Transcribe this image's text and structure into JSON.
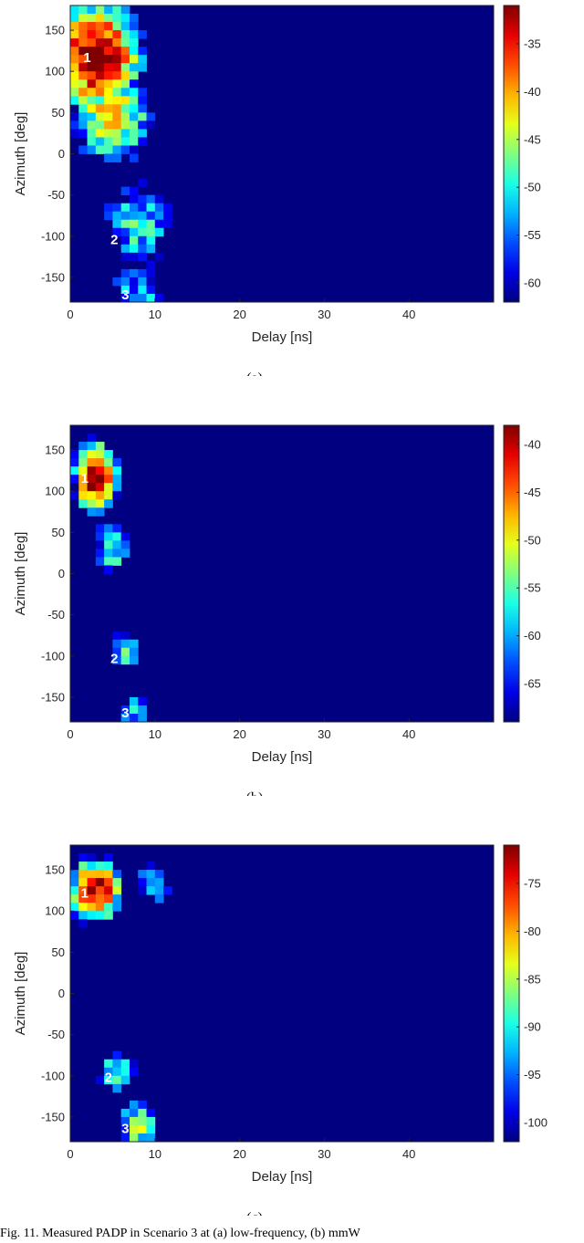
{
  "chart_data": [
    {
      "type": "heatmap",
      "caption": "(a)",
      "xlabel": "Delay [ns]",
      "ylabel": "Azimuth [deg]",
      "xlim": [
        0,
        50
      ],
      "ylim": [
        -180,
        180
      ],
      "xticks": [
        0,
        10,
        20,
        30,
        40
      ],
      "yticks": [
        150,
        100,
        50,
        0,
        -50,
        -100,
        -150
      ],
      "colorbar": {
        "min": -62,
        "max": -31,
        "ticks": [
          -35,
          -40,
          -45,
          -50,
          -55,
          -60
        ]
      },
      "colormap": "jet",
      "annotations": [
        {
          "label": "1",
          "delay": 2,
          "azimuth": 118
        },
        {
          "label": "2",
          "delay": 5.2,
          "azimuth": -103
        },
        {
          "label": "3",
          "delay": 6.5,
          "azimuth": -170
        }
      ],
      "clusters": [
        {
          "delay": 3,
          "azimuth": 120,
          "power": -31
        },
        {
          "delay": 5,
          "azimuth": 45,
          "power": -42
        },
        {
          "delay": 8,
          "azimuth": -85,
          "power": -50
        },
        {
          "delay": 8,
          "azimuth": -170,
          "power": -53
        }
      ]
    },
    {
      "type": "heatmap",
      "caption": "(b)",
      "xlabel": "Delay [ns]",
      "ylabel": "Azimuth [deg]",
      "xlim": [
        0,
        50
      ],
      "ylim": [
        -180,
        180
      ],
      "xticks": [
        0,
        10,
        20,
        30,
        40
      ],
      "yticks": [
        150,
        100,
        50,
        0,
        -50,
        -100,
        -150
      ],
      "colorbar": {
        "min": -69,
        "max": -38,
        "ticks": [
          -40,
          -45,
          -50,
          -55,
          -60,
          -65
        ]
      },
      "colormap": "jet",
      "annotations": [
        {
          "label": "1",
          "delay": 1.7,
          "azimuth": 117
        },
        {
          "label": "2",
          "delay": 5.2,
          "azimuth": -102
        },
        {
          "label": "3",
          "delay": 6.5,
          "azimuth": -168
        }
      ],
      "clusters": [
        {
          "delay": 3,
          "azimuth": 118,
          "power": -38
        },
        {
          "delay": 5,
          "azimuth": 35,
          "power": -54
        },
        {
          "delay": 6.5,
          "azimuth": -95,
          "power": -58
        },
        {
          "delay": 7.5,
          "azimuth": -170,
          "power": -60
        }
      ]
    },
    {
      "type": "heatmap",
      "caption": "(c)",
      "xlabel": "Delay [ns]",
      "ylabel": "Azimuth [deg]",
      "xlim": [
        0,
        50
      ],
      "ylim": [
        -180,
        180
      ],
      "xticks": [
        0,
        10,
        20,
        30,
        40
      ],
      "yticks": [
        150,
        100,
        50,
        0,
        -50,
        -100,
        -150
      ],
      "colorbar": {
        "min": -102,
        "max": -71,
        "ticks": [
          -75,
          -80,
          -85,
          -90,
          -95,
          -100
        ]
      },
      "colormap": "jet",
      "annotations": [
        {
          "label": "1",
          "delay": 1.7,
          "azimuth": 123
        },
        {
          "label": "2",
          "delay": 4.5,
          "azimuth": -101
        },
        {
          "label": "3",
          "delay": 6.5,
          "azimuth": -163
        }
      ],
      "clusters": [
        {
          "delay": 3,
          "azimuth": 125,
          "power": -71
        },
        {
          "delay": 10,
          "azimuth": 135,
          "power": -92
        },
        {
          "delay": 5.5,
          "azimuth": -95,
          "power": -90
        },
        {
          "delay": 8,
          "azimuth": -160,
          "power": -86
        }
      ]
    }
  ],
  "footer_text": "Fig. 11.  Measured PADP in Scenario 3 at (a) low-frequency, (b) mmW"
}
